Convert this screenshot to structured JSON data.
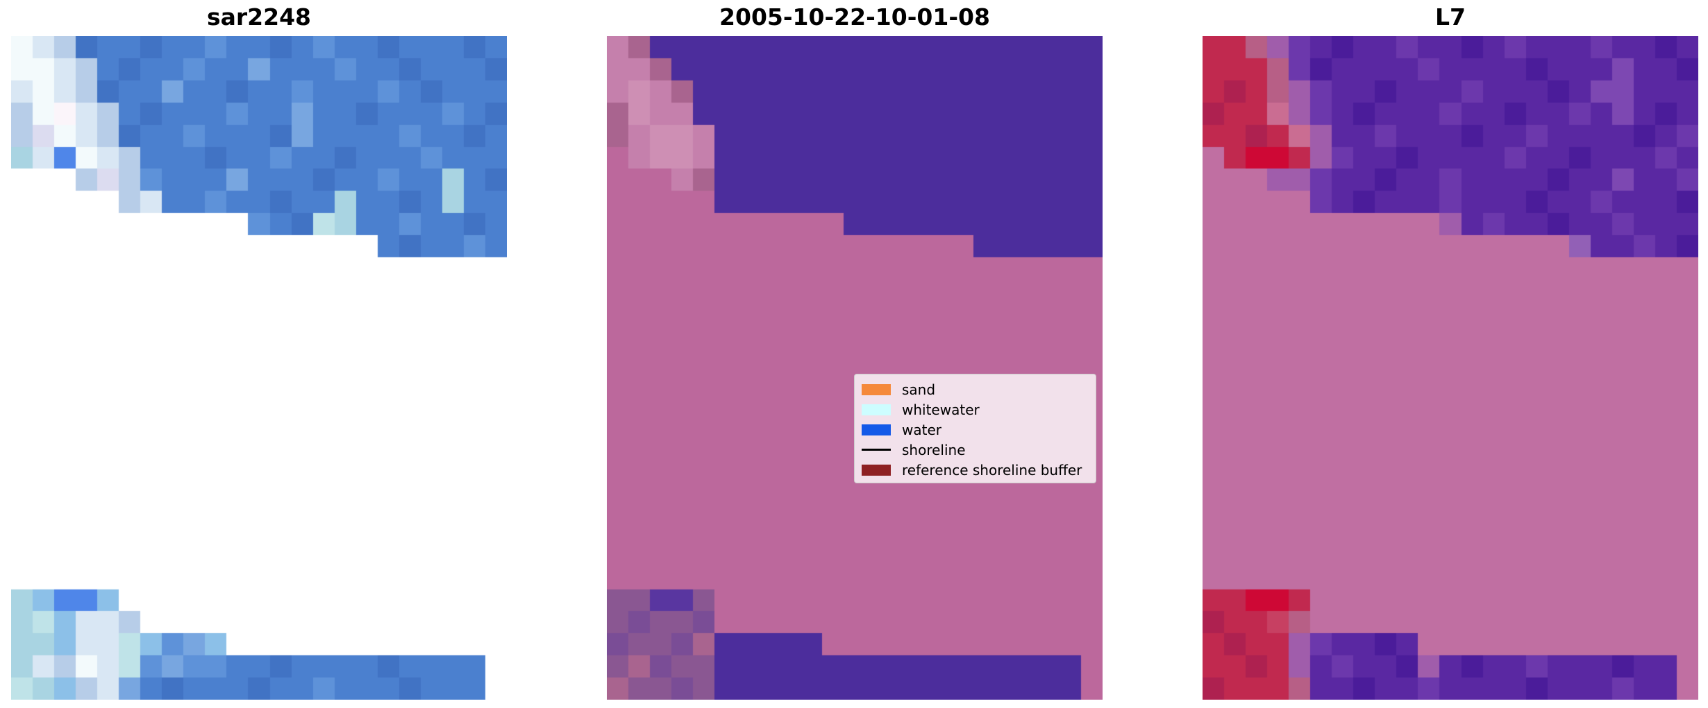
{
  "figure": {
    "background": "#ffffff",
    "description": "Three-panel coastal classification figure: SAR image, classified date panel, Landsat-7 panel"
  },
  "chart_data": {
    "type": "heatmap",
    "grid_cols": 23,
    "grid_rows": 30,
    "panels": [
      {
        "title": "sar2248",
        "kind": "SAR backscatter raster (blues = water, whites = whitewater, blank = no data)",
        "palette": {
          ".": "#ffffff",
          "a": "#4b80cf",
          "b": "#4173c4",
          "c": "#5e92d9",
          "d": "#78a6e0",
          "e": "#a9d4e2",
          "f": "#d9e7f4",
          "g": "#f3fafc",
          "h": "#fbf5fa",
          "i": "#dcdcf0",
          "j": "#b7cde8",
          "k": "#4f86e9",
          "l": "#bfe3e8",
          "m": "#8cc0e8"
        },
        "grid": [
          "gfjbaabaacaabacaabaaaba",
          "ggfjabaacaadaaacaabaaab",
          "fgfjbaadaabaacaaacabaaa",
          "jghfjabaaacaadaabaaacab",
          "jigfjbaacaaabdaaaacaaba",
          "efkgfjaaabaacaabaaacaaa",
          "...jijcaaadaaabaacaaeab",
          ".....jfaacaabaaeaabaeaa",
          "...........cableaacaaba",
          ".................abaaca",
          ".......................",
          ".......................",
          ".......................",
          ".......................",
          ".......................",
          ".......................",
          ".......................",
          ".......................",
          ".......................",
          ".......................",
          ".......................",
          ".......................",
          ".......................",
          ".......................",
          ".......................",
          "emkkm..................",
          "elmffj.................",
          "eemfflmcdm.............",
          "efjgflcdccaabaaaabaaaa.",
          "lemjfdabaaabaacaaabaaa."
        ]
      },
      {
        "title": "2005-10-22-10-01-08",
        "kind": "classified map: dark purple = water under buffer, mauve = reference shoreline buffer",
        "palette": {
          ".": "#ffffff",
          "M": "#bc689c",
          "P": "#4c2d9c",
          "p": "#c580ac",
          "q": "#a9648f",
          "r": "#ce8fb4",
          "Q": "#8a5792",
          "R": "#7a4d96",
          "S": "#5936a0"
        },
        "grid": [
          "pqPPPPPPPPPPPPPPPPPPPPP",
          "ppqPPPPPPPPPPPPPPPPPPPP",
          "prpqPPPPPPPPPPPPPPPPPPP",
          "qrppPPPPPPPPPPPPPPPPPPP",
          "qprrpPPPPPPPPPPPPPPPPPP",
          "MprrpPPPPPPPPPPPPPPPPPP",
          "MMMpqPPPPPPPPPPPPPPPPPP",
          "MMMMMPPPPPPPPPPPPPPPPPP",
          "MMMMMMMMMMMPPPPPPPPPPPP",
          "MMMMMMMMMMMMMMMMMPPPPPP",
          "MMMMMMMMMMMMMMMMMMMMMMM",
          "MMMMMMMMMMMMMMMMMMMMMMM",
          "MMMMMMMMMMMMMMMMMMMMMMM",
          "MMMMMMMMMMMMMMMMMMMMMMM",
          "MMMMMMMMMMMMMMMMMMMMMMM",
          "MMMMMMMMMMMMMMMMMMMMMMM",
          "MMMMMMMMMMMMMMMMMMMMMMM",
          "MMMMMMMMMMMMMMMMMMMMMMM",
          "MMMMMMMMMMMMMMMMMMMMMMM",
          "MMMMMMMMMMMMMMMMMMMMMMM",
          "MMMMMMMMMMMMMMMMMMMMMMM",
          "MMMMMMMMMMMMMMMMMMMMMMM",
          "MMMMMMMMMMMMMMMMMMMMMMM",
          "MMMMMMMMMMMMMMMMMMMMMMM",
          "MMMMMMMMMMMMMMMMMMMMMMM",
          "QQSSQMMMMMMMMMMMMMMMMMM",
          "QRQQRMMMMMMMMMMMMMMMMMM",
          "RQQRqPPPPPMMMMMMMMMMMMM",
          "QqRQQPPPPPPPPPPPPPPPPPM",
          "qQQRQPPPPPPPPPPPPPPPPPM"
        ]
      },
      {
        "title": "L7",
        "kind": "Landsat-7 RGB under buffer overlay: purples = water, crimson = sand/whitewater, mauve = buffer",
        "palette": {
          ".": "#ffffff",
          "M": "#c06fa2",
          "P": "#5a28a2",
          "V": "#4b1c9a",
          "W": "#6c38ac",
          "X": "#7d48b2",
          "Y": "#9260b6",
          "q": "#a05dab",
          "C": "#c1294f",
          "D": "#ae2150",
          "E": "#ce0835",
          "F": "#b75f86",
          "G": "#ca6d92",
          "R": "#c74062"
        },
        "grid": [
          "CCFqWPVPPWPPVPWPPPWPPVP",
          "CCCFWVPPPPWPPPPVPPPXPPV",
          "CDCFqWPPVPPPWPPPVPXXPPP",
          "DCCGqWPVPPPWPPVPPWPXPVP",
          "CCDCGqPPWPPPVPPWPPPPVPW",
          "MCEECqWPPVPPPPWPPVPPPWP",
          "MMMqqWPPVPPWPPPPVPPXPPW",
          "MMMMMWPVPPPWPPPVPPWPPPV",
          "MMMMMMMMMMMqPWPPVPPWPPP",
          "MMMMMMMMMMMMMMMMMYPPWPV",
          "MMMMMMMMMMMMMMMMMMMMMMM",
          "MMMMMMMMMMMMMMMMMMMMMMM",
          "MMMMMMMMMMMMMMMMMMMMMMM",
          "MMMMMMMMMMMMMMMMMMMMMMM",
          "MMMMMMMMMMMMMMMMMMMMMMM",
          "MMMMMMMMMMMMMMMMMMMMMMM",
          "MMMMMMMMMMMMMMMMMMMMMMM",
          "MMMMMMMMMMMMMMMMMMMMMMM",
          "MMMMMMMMMMMMMMMMMMMMMMM",
          "MMMMMMMMMMMMMMMMMMMMMMM",
          "MMMMMMMMMMMMMMMMMMMMMMM",
          "MMMMMMMMMMMMMMMMMMMMMMM",
          "MMMMMMMMMMMMMMMMMMMMMMM",
          "MMMMMMMMMMMMMMMMMMMMMMM",
          "MMMMMMMMMMMMMMMMMMMMMMM",
          "CCEECMMMMMMMMMMMMMMMMMM",
          "DCCRFMMMMMMMMMMMMMMMMMM",
          "CDCCqWPPVPMMMMMMMMMMMMM",
          "CCDCqPWPPVqPVPPWPPPVPPM",
          "DCCCFPPVPPWPPPPVPPPWPPM"
        ]
      }
    ],
    "legend": {
      "position": "center-right of middle panel",
      "background": "#f2e3ec",
      "border_color": "#cccccc",
      "entries": [
        {
          "label": "sand",
          "color": "#f5893b",
          "type": "patch"
        },
        {
          "label": "whitewater",
          "color": "#cdfdff",
          "type": "patch"
        },
        {
          "label": "water",
          "color": "#145ae8",
          "type": "patch"
        },
        {
          "label": "shoreline",
          "color": "#000000",
          "type": "line"
        },
        {
          "label": "reference shoreline buffer",
          "color": "#8e2123",
          "type": "patch"
        }
      ]
    }
  }
}
